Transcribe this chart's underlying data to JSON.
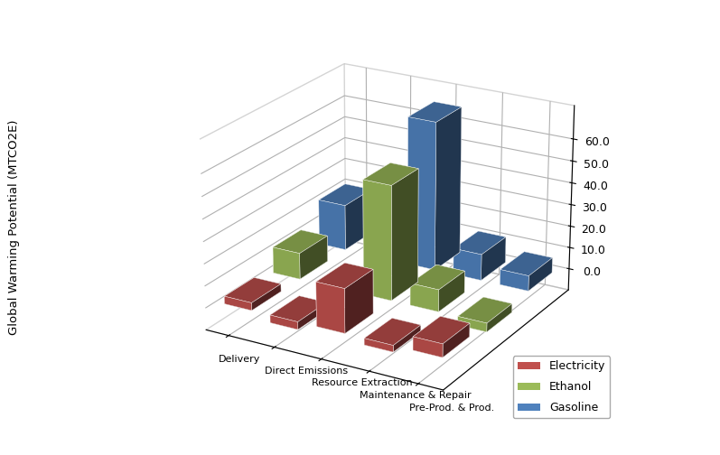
{
  "categories": [
    "Delivery",
    "Direct Emissions",
    "Resource Extraction",
    "Maintenance & Repair",
    "Pre-Prod. & Prod."
  ],
  "series": [
    "Electricity",
    "Ethanol",
    "Gasoline"
  ],
  "colors": [
    "#C0504D",
    "#9BBB59",
    "#4F81BD"
  ],
  "values": {
    "Electricity": [
      3.5,
      -3.5,
      20.0,
      -3.0,
      6.0
    ],
    "Ethanol": [
      12.0,
      0.0,
      52.0,
      10.0,
      -4.0
    ],
    "Gasoline": [
      21.0,
      0.0,
      68.0,
      12.0,
      7.0
    ]
  },
  "ylabel": "Global Warming Potential (MTCO2E)",
  "zlim": [
    -10,
    75
  ],
  "zticks": [
    0.0,
    10.0,
    20.0,
    30.0,
    40.0,
    50.0,
    60.0
  ],
  "bar_width": 0.6,
  "bar_depth": 0.6,
  "background_color": "#FFFFFF",
  "legend_labels": [
    "Electricity",
    "Ethanol",
    "Gasoline"
  ],
  "elev": 22,
  "azim": -60
}
